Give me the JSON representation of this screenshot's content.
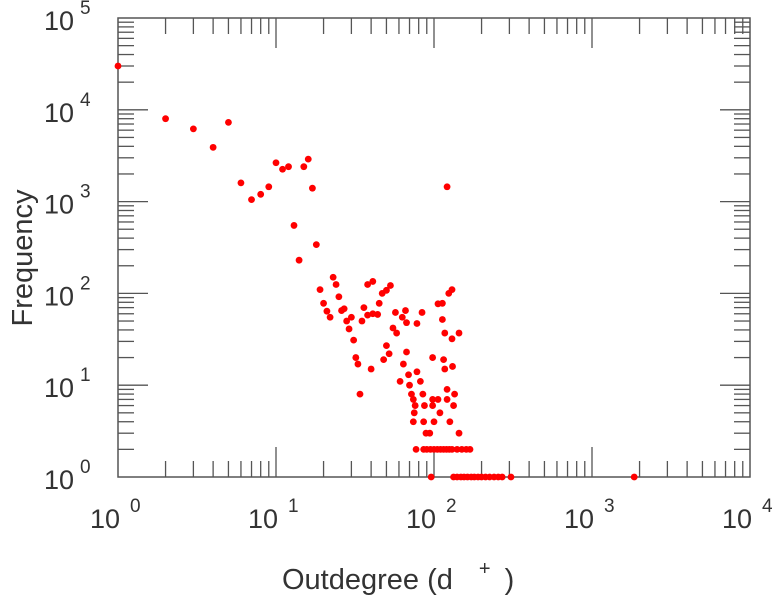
{
  "chart_data": {
    "type": "scatter",
    "title": "",
    "xlabel": "Outdegree (d",
    "xlabel_sup": "+",
    "xlabel_close": ")",
    "ylabel": "Frequency",
    "xscale": "log",
    "yscale": "log",
    "xlim": [
      1,
      10000
    ],
    "ylim": [
      1,
      100000
    ],
    "grid": false,
    "marker_color": "#ff0000",
    "xticks": [
      {
        "base": "10",
        "exp": "0"
      },
      {
        "base": "10",
        "exp": "1"
      },
      {
        "base": "10",
        "exp": "2"
      },
      {
        "base": "10",
        "exp": "3"
      },
      {
        "base": "10",
        "exp": "4"
      }
    ],
    "yticks": [
      {
        "base": "10",
        "exp": "0"
      },
      {
        "base": "10",
        "exp": "1"
      },
      {
        "base": "10",
        "exp": "2"
      },
      {
        "base": "10",
        "exp": "3"
      },
      {
        "base": "10",
        "exp": "4"
      },
      {
        "base": "10",
        "exp": "5"
      }
    ],
    "points": [
      [
        1,
        30000
      ],
      [
        2,
        8000
      ],
      [
        3,
        6200
      ],
      [
        4,
        3900
      ],
      [
        5,
        7300
      ],
      [
        6,
        1600
      ],
      [
        7,
        1050
      ],
      [
        8,
        1200
      ],
      [
        9,
        1450
      ],
      [
        10,
        2650
      ],
      [
        11,
        2250
      ],
      [
        12,
        2400
      ],
      [
        13,
        550
      ],
      [
        14,
        230
      ],
      [
        15,
        2400
      ],
      [
        16,
        2900
      ],
      [
        17,
        1400
      ],
      [
        18,
        340
      ],
      [
        19,
        110
      ],
      [
        20,
        78
      ],
      [
        21,
        64
      ],
      [
        22,
        55
      ],
      [
        23,
        150
      ],
      [
        24,
        125
      ],
      [
        25,
        92
      ],
      [
        26,
        65
      ],
      [
        27,
        68
      ],
      [
        28,
        50
      ],
      [
        29,
        41
      ],
      [
        30,
        55
      ],
      [
        31,
        31
      ],
      [
        32,
        20
      ],
      [
        33,
        17
      ],
      [
        34,
        8
      ],
      [
        35,
        50
      ],
      [
        36,
        70
      ],
      [
        38,
        125
      ],
      [
        38,
        58
      ],
      [
        40,
        15
      ],
      [
        41,
        135
      ],
      [
        41,
        60
      ],
      [
        44,
        59
      ],
      [
        45,
        78
      ],
      [
        47,
        100
      ],
      [
        48,
        19
      ],
      [
        50,
        108
      ],
      [
        50,
        27
      ],
      [
        52,
        22
      ],
      [
        53,
        122
      ],
      [
        55,
        42
      ],
      [
        57,
        62
      ],
      [
        58,
        37
      ],
      [
        61,
        11
      ],
      [
        63,
        55
      ],
      [
        64,
        17
      ],
      [
        66,
        65
      ],
      [
        67,
        23
      ],
      [
        67,
        48
      ],
      [
        69,
        13
      ],
      [
        70,
        10
      ],
      [
        72,
        8
      ],
      [
        74,
        7
      ],
      [
        74,
        4
      ],
      [
        75,
        5
      ],
      [
        76,
        6
      ],
      [
        78,
        47
      ],
      [
        78,
        14
      ],
      [
        82,
        11
      ],
      [
        84,
        62
      ],
      [
        85,
        8
      ],
      [
        86,
        4
      ],
      [
        87,
        6
      ],
      [
        89,
        3
      ],
      [
        94,
        3
      ],
      [
        98,
        20
      ],
      [
        98,
        6
      ],
      [
        98,
        7
      ],
      [
        100,
        4
      ],
      [
        106,
        77
      ],
      [
        106,
        7
      ],
      [
        109,
        5
      ],
      [
        113,
        78
      ],
      [
        113,
        52
      ],
      [
        115,
        19
      ],
      [
        117,
        37
      ],
      [
        117,
        15
      ],
      [
        121,
        9
      ],
      [
        121,
        7
      ],
      [
        121,
        1450
      ],
      [
        124,
        100
      ],
      [
        126,
        4
      ],
      [
        130,
        110
      ],
      [
        130,
        32
      ],
      [
        131,
        16
      ],
      [
        133,
        6
      ],
      [
        135,
        8
      ],
      [
        144,
        37
      ],
      [
        144,
        3
      ],
      [
        77,
        2
      ],
      [
        86,
        2
      ],
      [
        90,
        2
      ],
      [
        95,
        2
      ],
      [
        100,
        2
      ],
      [
        105,
        2
      ],
      [
        110,
        2
      ],
      [
        115,
        2
      ],
      [
        120,
        2
      ],
      [
        125,
        2
      ],
      [
        130,
        2
      ],
      [
        140,
        2
      ],
      [
        150,
        2
      ],
      [
        160,
        2
      ],
      [
        169,
        2
      ],
      [
        96,
        1
      ],
      [
        133,
        1
      ],
      [
        140,
        1
      ],
      [
        148,
        1
      ],
      [
        155,
        1
      ],
      [
        163,
        1
      ],
      [
        172,
        1
      ],
      [
        180,
        1
      ],
      [
        190,
        1
      ],
      [
        200,
        1
      ],
      [
        212,
        1
      ],
      [
        225,
        1
      ],
      [
        240,
        1
      ],
      [
        255,
        1
      ],
      [
        270,
        1
      ],
      [
        307,
        1
      ],
      [
        1850,
        1
      ]
    ]
  }
}
